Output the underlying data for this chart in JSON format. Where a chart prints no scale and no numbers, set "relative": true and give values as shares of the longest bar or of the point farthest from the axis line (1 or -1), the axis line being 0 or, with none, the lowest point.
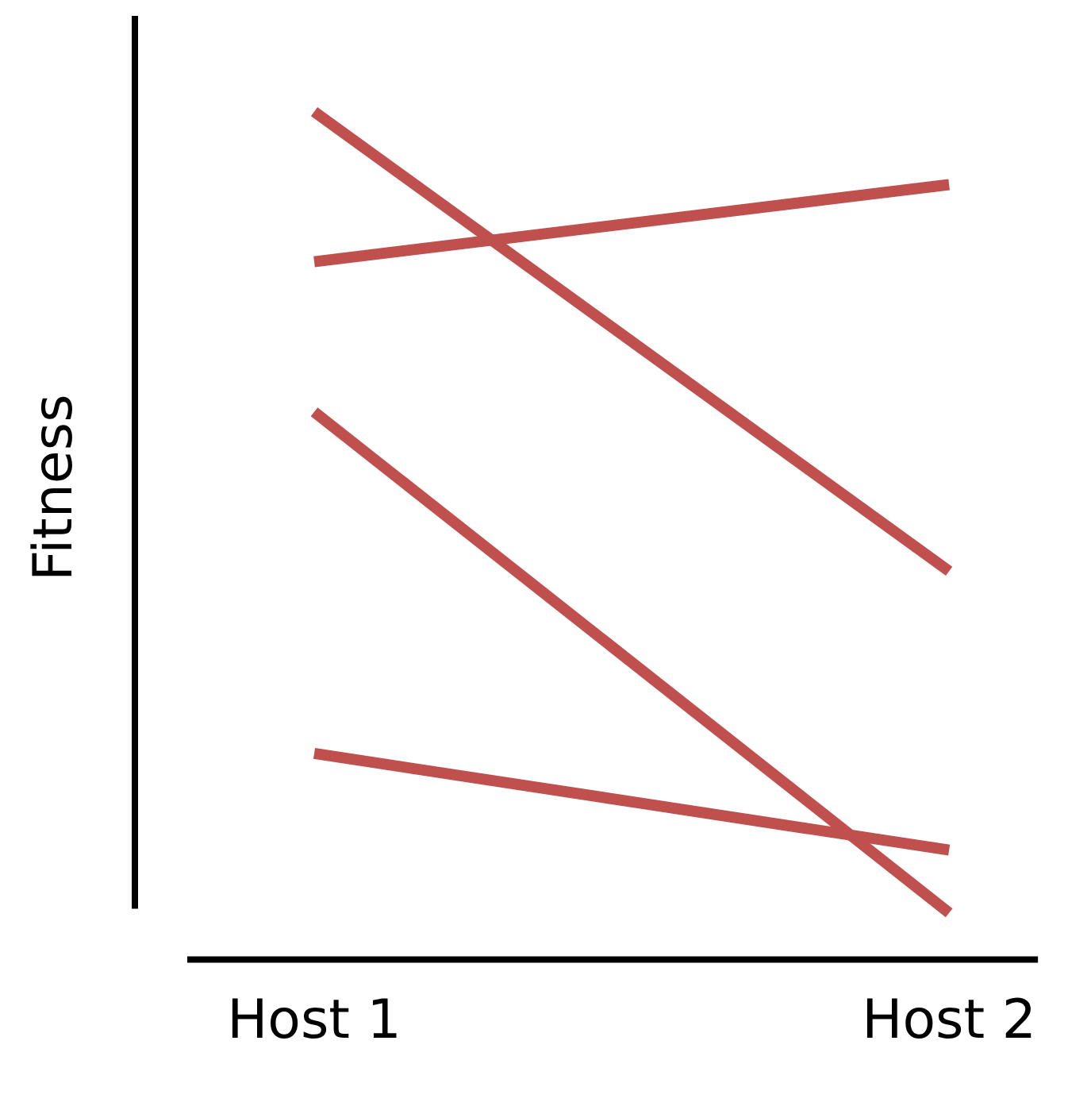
{
  "chart_data": {
    "type": "line",
    "relative": true,
    "ylabel": "Fitness",
    "categories": [
      "Host 1",
      "Host 2"
    ],
    "grid": false,
    "legend": false,
    "marker": "none",
    "line_style": "solid",
    "series": [
      {
        "color": "#c0504d",
        "values": [
          1,
          0.458
        ]
      },
      {
        "color": "#c0504d",
        "values": [
          0.823,
          0.914
        ]
      },
      {
        "color": "#c0504d",
        "values": [
          0.646,
          0.055
        ]
      },
      {
        "color": "#c0504d",
        "values": [
          0.243,
          0.129
        ]
      }
    ]
  }
}
